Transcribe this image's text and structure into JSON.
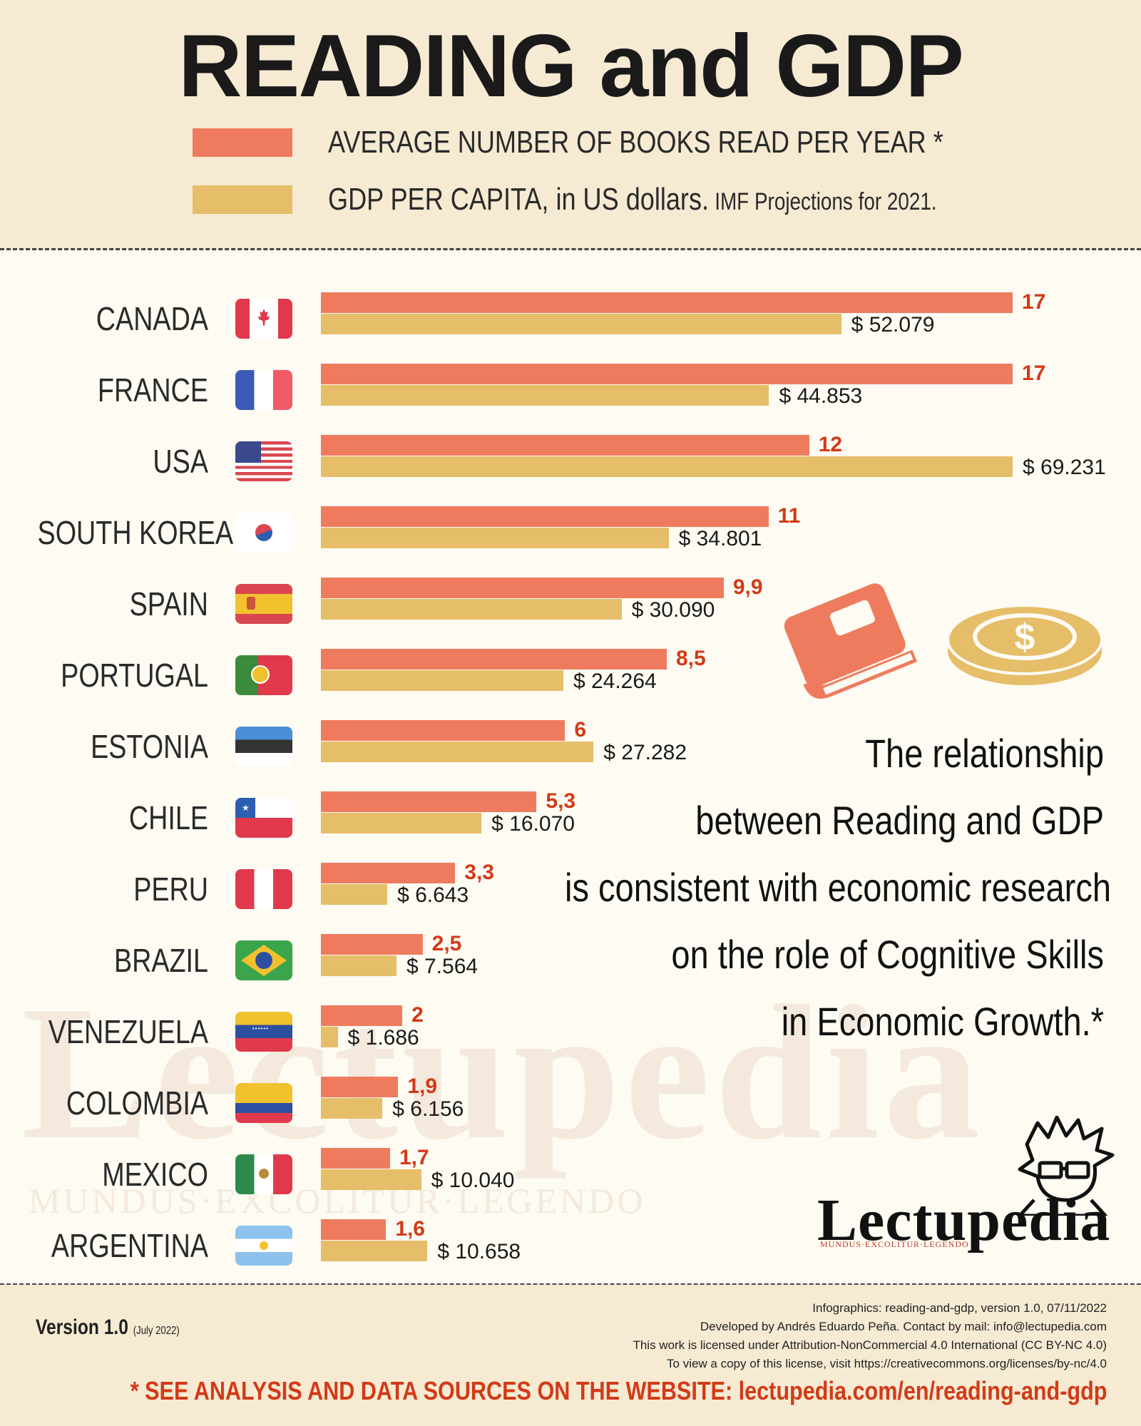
{
  "title": "READING and GDP",
  "legend": {
    "books": "AVERAGE NUMBER OF BOOKS READ PER YEAR *",
    "gdp": "GDP PER CAPITA, in US dollars.",
    "gdp_note": "IMF Projections for 2021."
  },
  "colors": {
    "books": "#ef7b5f",
    "gdp": "#e6bd68",
    "books_value": "#d23a17",
    "background": "#fdfbf2",
    "header": "#f6ead3"
  },
  "chart_data": {
    "type": "bar",
    "orientation": "horizontal",
    "title": "READING and GDP",
    "categories": [
      "CANADA",
      "FRANCE",
      "USA",
      "SOUTH KOREA",
      "SPAIN",
      "PORTUGAL",
      "ESTONIA",
      "CHILE",
      "PERU",
      "BRAZIL",
      "VENEZUELA",
      "COLOMBIA",
      "MEXICO",
      "ARGENTINA"
    ],
    "series": [
      {
        "name": "AVERAGE NUMBER OF BOOKS READ PER YEAR *",
        "values": [
          17,
          17,
          12,
          11,
          9.9,
          8.5,
          6,
          5.3,
          3.3,
          2.5,
          2,
          1.9,
          1.7,
          1.6
        ],
        "labels": [
          "17",
          "17",
          "12",
          "11",
          "9,9",
          "8,5",
          "6",
          "5,3",
          "3,3",
          "2,5",
          "2",
          "1,9",
          "1,7",
          "1,6"
        ]
      },
      {
        "name": "GDP PER CAPITA, in US dollars.",
        "values": [
          52079,
          44853,
          69231,
          34801,
          30090,
          24264,
          27282,
          16070,
          6643,
          7564,
          1686,
          6156,
          10040,
          10658
        ],
        "labels": [
          "$ 52.079",
          "$ 44.853",
          "$ 69.231",
          "$ 34.801",
          "$ 30.090",
          "$ 24.264",
          "$ 27.282",
          "$ 16.070",
          "$ 6.643",
          "$ 7.564",
          "$ 1.686",
          "$ 6.156",
          "$ 10.040",
          "$ 10.658"
        ]
      }
    ],
    "xlim_books": [
      0,
      17
    ],
    "xlim_gdp": [
      0,
      69231
    ],
    "grid": false,
    "legend_placement": "top"
  },
  "flags": [
    "canada-flag",
    "france-flag",
    "usa-flag",
    "south-korea-flag",
    "spain-flag",
    "portugal-flag",
    "estonia-flag",
    "chile-flag",
    "peru-flag",
    "brazil-flag",
    "venezuela-flag",
    "colombia-flag",
    "mexico-flag",
    "argentina-flag"
  ],
  "quote": [
    "The relationship",
    "between Reading and GDP",
    "is consistent with economic research",
    "on the role of Cognitive Skills",
    "in Economic Growth.*"
  ],
  "icons": [
    "book-icon",
    "coin-icon"
  ],
  "logo": {
    "name": "Lectupedia",
    "motto": "MUNDUS·EXCOLITUR·LEGENDO"
  },
  "footer": {
    "version": "Version 1.0",
    "version_date": "(July 2022)",
    "credits": [
      "Infographics: reading-and-gdp, version 1.0, 07/11/2022",
      "Developed by Andrés Eduardo Peña. Contact by mail: info@lectupedia.com",
      "This work is licensed under Attribution-NonCommercial 4.0 International (CC BY-NC 4.0)",
      "To view a copy of this license, visit https://creativecommons.org/licenses/by-nc/4.0"
    ],
    "sources": "* SEE ANALYSIS AND DATA SOURCES ON THE WEBSITE:  lectupedia.com/en/reading-and-gdp"
  }
}
